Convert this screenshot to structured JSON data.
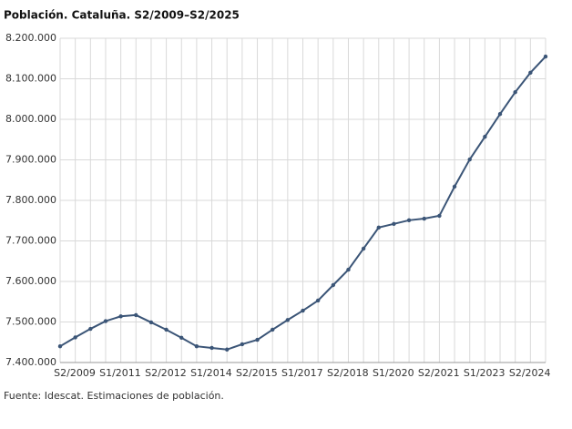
{
  "chart_data": {
    "type": "line",
    "title": "Población. Cataluña. S2/2009–S2/2025",
    "source": "Fuente: Idescat. Estimaciones de población.",
    "categories": [
      "S2/2009",
      null,
      null,
      "S1/2011",
      null,
      null,
      "S2/2012",
      null,
      null,
      "S1/2014",
      null,
      null,
      "S2/2015",
      null,
      null,
      "S1/2017",
      null,
      null,
      "S2/2018",
      null,
      null,
      "S1/2020",
      null,
      null,
      "S2/2021",
      null,
      null,
      "S1/2023",
      null,
      null,
      "S2/2024",
      null,
      null
    ],
    "series": [
      {
        "name": "Población",
        "color": "#3b5577",
        "values": [
          7440000,
          7462000,
          7483000,
          7502000,
          7514000,
          7517000,
          7499000,
          7481000,
          7461000,
          7440000,
          7436000,
          7432000,
          7445000,
          7456000,
          7481000,
          7505000,
          7528000,
          7553000,
          7591000,
          7629000,
          7681000,
          7733000,
          7742000,
          7751000,
          7755000,
          7762000,
          7834000,
          7901000,
          7957000,
          8013000,
          8067000,
          8115000,
          8155000
        ]
      }
    ],
    "ylim": [
      7400000,
      8200000
    ],
    "yticks": [
      {
        "value": 7400000,
        "label": "7.400.000"
      },
      {
        "value": 7500000,
        "label": "7.500.000"
      },
      {
        "value": 7600000,
        "label": "7.600.000"
      },
      {
        "value": 7700000,
        "label": "7.700.000"
      },
      {
        "value": 7800000,
        "label": "7.800.000"
      },
      {
        "value": 7900000,
        "label": "7.900.000"
      },
      {
        "value": 8000000,
        "label": "8.000.000"
      },
      {
        "value": 8100000,
        "label": "8.100.000"
      },
      {
        "value": 8200000,
        "label": "8.200.000"
      }
    ],
    "grid": true
  }
}
